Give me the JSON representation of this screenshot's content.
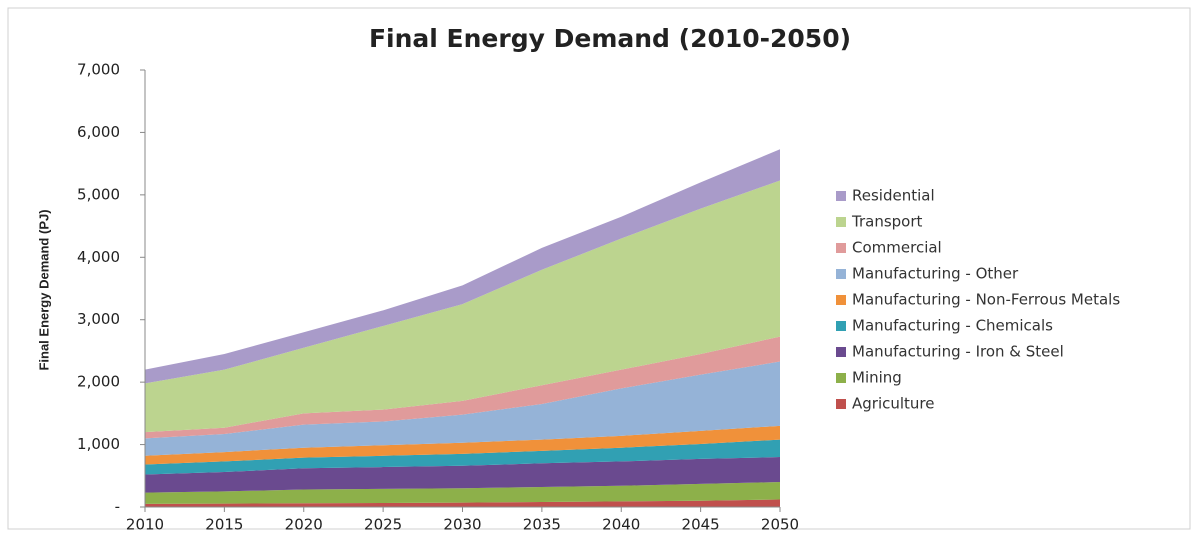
{
  "chart_data": {
    "type": "stacked-area",
    "title": "Final Energy Demand (2010-2050)",
    "y_label": "Final Energy Demand (PJ)",
    "x": [
      2010,
      2015,
      2020,
      2025,
      2030,
      2035,
      2040,
      2045,
      2050
    ],
    "xlim": [
      2010,
      2050
    ],
    "xticks": [
      2010,
      2015,
      2020,
      2025,
      2030,
      2035,
      2040,
      2045,
      2050
    ],
    "ylim": [
      0,
      7000
    ],
    "yticks": [
      {
        "value": 0,
        "label": "-"
      },
      {
        "value": 1000,
        "label": "1,000"
      },
      {
        "value": 2000,
        "label": "2,000"
      },
      {
        "value": 3000,
        "label": "3,000"
      },
      {
        "value": 4000,
        "label": "4,000"
      },
      {
        "value": 5000,
        "label": "5,000"
      },
      {
        "value": 6000,
        "label": "6,000"
      },
      {
        "value": 7000,
        "label": "7,000"
      }
    ],
    "legend": "right",
    "series": [
      {
        "name": "Agriculture",
        "color": "#c0504d",
        "values": [
          50,
          55,
          60,
          65,
          70,
          80,
          90,
          100,
          120
        ]
      },
      {
        "name": "Mining",
        "color": "#8db04a",
        "values": [
          180,
          195,
          220,
          225,
          230,
          240,
          250,
          270,
          280
        ]
      },
      {
        "name": "Manufacturing - Iron & Steel",
        "color": "#6a4a8f",
        "values": [
          290,
          310,
          340,
          350,
          360,
          380,
          390,
          400,
          400
        ]
      },
      {
        "name": "Manufacturing - Chemicals",
        "color": "#31a0b3",
        "values": [
          160,
          170,
          170,
          180,
          190,
          200,
          220,
          240,
          280
        ]
      },
      {
        "name": "Manufacturing - Non-Ferrous Metals",
        "color": "#f0913a",
        "values": [
          140,
          150,
          160,
          170,
          180,
          180,
          190,
          210,
          220
        ]
      },
      {
        "name": "Manufacturing - Other",
        "color": "#95b3d7",
        "values": [
          280,
          290,
          370,
          380,
          450,
          570,
          760,
          900,
          1030
        ]
      },
      {
        "name": "Commercial",
        "color": "#e09b9b",
        "values": [
          100,
          100,
          180,
          190,
          220,
          300,
          300,
          330,
          400
        ]
      },
      {
        "name": "Transport",
        "color": "#bcd48f",
        "values": [
          780,
          930,
          1050,
          1340,
          1550,
          1850,
          2100,
          2330,
          2500
        ]
      },
      {
        "name": "Residential",
        "color": "#a99bc9",
        "values": [
          220,
          250,
          250,
          250,
          300,
          350,
          350,
          420,
          500
        ]
      }
    ]
  }
}
